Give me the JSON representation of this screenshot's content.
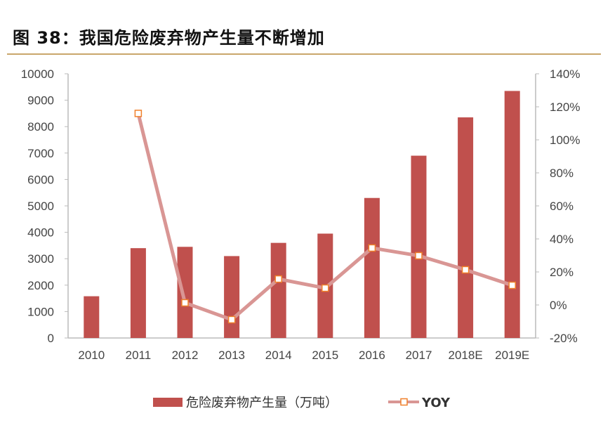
{
  "title": "图 38：我国危险废弃物产生量不断增加",
  "chart_data": {
    "type": "bar+line",
    "categories": [
      "2010",
      "2011",
      "2012",
      "2013",
      "2014",
      "2015",
      "2016",
      "2017",
      "2018E",
      "2019E"
    ],
    "series": [
      {
        "name": "危险废弃物产生量（万吨）",
        "type": "bar",
        "axis": "left",
        "color": "#c0504d",
        "values": [
          1580,
          3400,
          3450,
          3100,
          3600,
          3950,
          5300,
          6900,
          8350,
          9350
        ]
      },
      {
        "name": "YOY",
        "type": "line",
        "axis": "right",
        "color": "#d99694",
        "marker_color": "#f0802a",
        "values": [
          null,
          116,
          1.3,
          -8.9,
          15.7,
          10.2,
          34.5,
          29.8,
          21.3,
          11.9
        ]
      }
    ],
    "left_axis": {
      "ylim": [
        0,
        10000
      ],
      "ticks": [
        "0",
        "1000",
        "2000",
        "3000",
        "4000",
        "5000",
        "6000",
        "7000",
        "8000",
        "9000",
        "10000"
      ]
    },
    "right_axis": {
      "ylim": [
        -20,
        140
      ],
      "ticks": [
        "-20%",
        "0%",
        "20%",
        "40%",
        "60%",
        "80%",
        "100%",
        "120%",
        "140%"
      ]
    },
    "grid": false,
    "legend_position": "bottom"
  }
}
